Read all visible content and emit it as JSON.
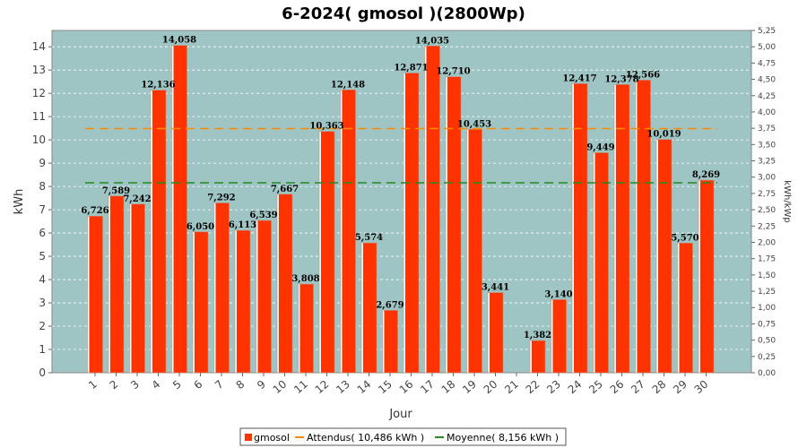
{
  "chart_data": {
    "type": "bar",
    "title": "6-2024( gmosol )(2800Wp)",
    "xlabel": "Jour",
    "ylabel": "kWh",
    "ylabel_right": "kWh/kWp",
    "ylim": [
      0,
      14.7
    ],
    "ylim_right": [
      0,
      5.25
    ],
    "yticks": [
      0,
      1,
      2,
      3,
      4,
      5,
      6,
      7,
      8,
      9,
      10,
      11,
      12,
      13,
      14
    ],
    "yticks_right": [
      "0,00",
      "0,25",
      "0,50",
      "0,75",
      "1,00",
      "1,25",
      "1,50",
      "1,75",
      "2,00",
      "2,25",
      "2,50",
      "2,75",
      "3,00",
      "3,25",
      "3,50",
      "3,75",
      "4,00",
      "4,25",
      "4,50",
      "4,75",
      "5,00",
      "5,25"
    ],
    "categories": [
      "1",
      "2",
      "3",
      "4",
      "5",
      "6",
      "7",
      "8",
      "9",
      "10",
      "11",
      "12",
      "13",
      "14",
      "15",
      "16",
      "17",
      "18",
      "19",
      "20",
      "21",
      "22",
      "23",
      "24",
      "25",
      "26",
      "27",
      "28",
      "29",
      "30"
    ],
    "series": [
      {
        "name": "gmosol",
        "color": "#ff3300",
        "values": [
          6.726,
          7.589,
          7.242,
          12.136,
          14.058,
          6.05,
          7.292,
          6.113,
          6.539,
          7.667,
          3.808,
          10.363,
          12.148,
          5.574,
          2.679,
          12.871,
          14.035,
          12.71,
          10.453,
          3.441,
          0,
          1.382,
          3.14,
          12.417,
          9.449,
          12.378,
          12.566,
          10.019,
          5.57,
          8.269
        ],
        "labels": [
          "6,726",
          "7,589",
          "7,242",
          "12,136",
          "14,058",
          "6,050",
          "7,292",
          "6,113",
          "6,539",
          "7,667",
          "3,808",
          "10,363",
          "12,148",
          "5,574",
          "2,679",
          "12,871",
          "14,035",
          "12,710",
          "10,453",
          "3,441",
          "",
          "1,382",
          "3,140",
          "12,417",
          "9,449",
          "12,378",
          "12,566",
          "10,019",
          "5,570",
          "8,269"
        ]
      }
    ],
    "reference_lines": [
      {
        "name": "Attendus( 10,486 kWh )",
        "value": 10.486,
        "color": "#ff8c00"
      },
      {
        "name": "Moyenne( 8,156 kWh )",
        "value": 8.156,
        "color": "#228b22"
      }
    ],
    "grid": true,
    "legend_position": "bottom",
    "plot_background": "#9ec5c3"
  }
}
